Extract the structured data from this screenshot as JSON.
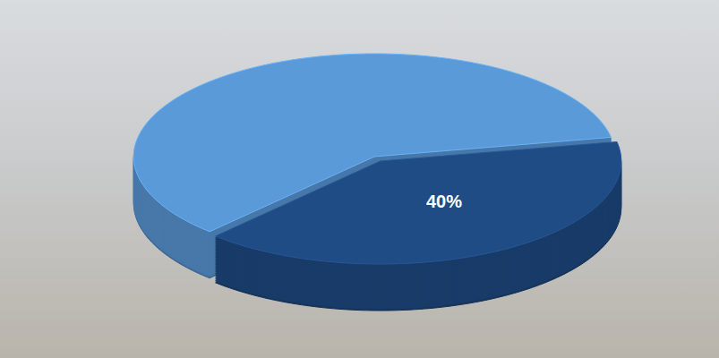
{
  "chart_data": {
    "type": "pie",
    "values": [
      60,
      40
    ],
    "value_labels": [
      null,
      "40%"
    ],
    "data_labels": true,
    "colors": [
      "#5b9ad9",
      "#1f4c85"
    ]
  }
}
